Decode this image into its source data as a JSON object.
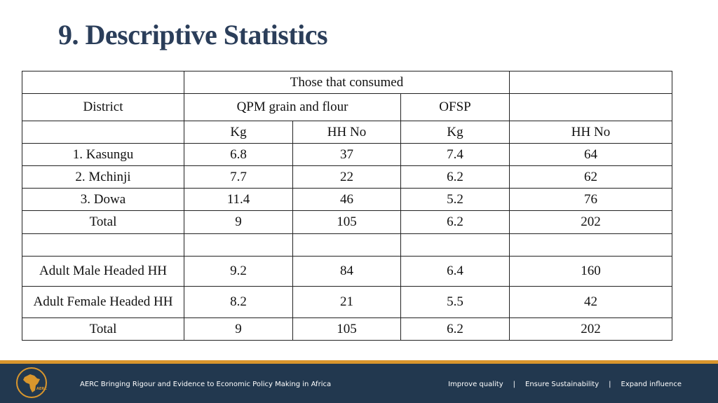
{
  "header": {
    "title": "9. Descriptive Statistics"
  },
  "table": {
    "group": "Those that consumed",
    "district": "District",
    "qpm": "QPM grain and flour",
    "ofsp": "OFSP",
    "units": [
      "Kg",
      "HH No",
      "Kg",
      "HH No"
    ],
    "rows": [
      [
        "1. Kasungu",
        "6.8",
        "37",
        "7.4",
        "64"
      ],
      [
        "2. Mchinji",
        "7.7",
        "22",
        "6.2",
        "62"
      ],
      [
        "3. Dowa",
        "11.4",
        "46",
        "5.2",
        "76"
      ],
      [
        "Total",
        "9",
        "105",
        "6.2",
        "202"
      ]
    ],
    "rows2": [
      [
        "Adult Male Headed HH",
        "9.2",
        "84",
        "6.4",
        "160"
      ],
      [
        "Adult Female Headed HH",
        "8.2",
        "21",
        "5.5",
        "42"
      ],
      [
        "Total",
        "9",
        "105",
        "6.2",
        "202"
      ]
    ]
  },
  "footer": {
    "logo": "AERC",
    "tagline": "AERC Bringing Rigour and Evidence to Economic Policy Making in Africa",
    "links": [
      "Improve quality",
      "Ensure Sustainability",
      "Expand influence"
    ],
    "separator": "|"
  }
}
